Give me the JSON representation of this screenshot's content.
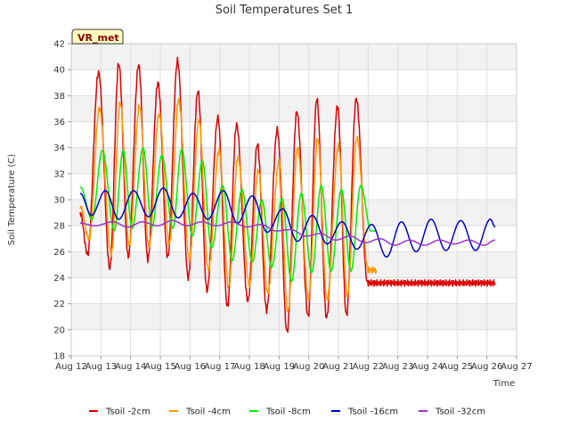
{
  "chart_data": {
    "type": "line",
    "title": "Soil Temperatures Set 1",
    "xlabel": "Time",
    "ylabel": "Soil Temperature (C)",
    "site_label": "VR_met",
    "xlim": [
      12,
      27
    ],
    "ylim": [
      18,
      42
    ],
    "x_ticks": [
      {
        "x": 12,
        "label": "Aug 12"
      },
      {
        "x": 13,
        "label": "Aug 13"
      },
      {
        "x": 14,
        "label": "Aug 14"
      },
      {
        "x": 15,
        "label": "Aug 15"
      },
      {
        "x": 16,
        "label": "Aug 16"
      },
      {
        "x": 17,
        "label": "Aug 17"
      },
      {
        "x": 18,
        "label": "Aug 18"
      },
      {
        "x": 19,
        "label": "Aug 19"
      },
      {
        "x": 20,
        "label": "Aug 20"
      },
      {
        "x": 21,
        "label": "Aug 21"
      },
      {
        "x": 22,
        "label": "Aug 22"
      },
      {
        "x": 23,
        "label": "Aug 23"
      },
      {
        "x": 24,
        "label": "Aug 24"
      },
      {
        "x": 25,
        "label": "Aug 25"
      },
      {
        "x": 26,
        "label": "Aug 26"
      },
      {
        "x": 27,
        "label": "Aug 27"
      }
    ],
    "y_ticks": [
      18,
      20,
      22,
      24,
      26,
      28,
      30,
      32,
      34,
      36,
      38,
      40,
      42
    ],
    "grid": true,
    "legend_position": "bottom",
    "series": [
      {
        "name": "Tsoil -2cm",
        "color": "#dd0000",
        "x": [
          12.3,
          12.55,
          12.92,
          13.3,
          13.6,
          13.92,
          14.27,
          14.58,
          14.92,
          15.25,
          15.58,
          15.94,
          16.27,
          16.57,
          16.94,
          17.26,
          17.57,
          17.95,
          18.27,
          18.58,
          18.94,
          19.27,
          19.6,
          19.98,
          20.27,
          20.6,
          20.97,
          21.27,
          21.6,
          21.98,
          22.27,
          22.6,
          22.98,
          23.28,
          23.61,
          23.96,
          24.28,
          24.62,
          24.97,
          25.28,
          25.62,
          25.96,
          26.28
        ],
        "y": [
          29.0,
          25.8,
          39.8,
          24.7,
          40.5,
          25.6,
          40.4,
          25.4,
          39.0,
          25.6,
          40.7,
          24.0,
          38.4,
          23.0,
          36.3,
          21.8,
          35.8,
          22.2,
          34.3,
          21.5,
          35.4,
          19.8,
          36.8,
          21.0,
          37.8,
          20.9,
          37.2,
          21.1,
          37.8,
          23.6,
          23.6,
          23.6,
          23.6,
          23.6,
          23.6,
          23.6,
          23.6,
          23.6,
          23.6,
          23.6,
          23.6,
          23.6,
          23.6
        ]
      },
      {
        "name": "Tsoil -4cm",
        "color": "#ff9900",
        "x": [
          12.3,
          12.6,
          12.95,
          13.35,
          13.65,
          13.95,
          14.3,
          14.62,
          14.96,
          15.3,
          15.62,
          15.98,
          16.3,
          16.62,
          16.98,
          17.3,
          17.62,
          18.0,
          18.3,
          18.62,
          19.0,
          19.3,
          19.62,
          20.0,
          20.3,
          20.62,
          21.0,
          21.3,
          21.62,
          22.0,
          22.28
        ],
        "y": [
          29.5,
          27.0,
          37.0,
          25.8,
          37.5,
          26.5,
          37.2,
          26.4,
          36.6,
          26.6,
          37.7,
          25.4,
          36.1,
          24.6,
          33.8,
          23.3,
          33.3,
          23.4,
          32.3,
          22.8,
          33.0,
          21.4,
          34.0,
          22.4,
          34.7,
          22.3,
          34.2,
          22.5,
          34.8,
          24.6,
          24.6
        ]
      },
      {
        "name": "Tsoil -8cm",
        "color": "#00ee00",
        "x": [
          12.3,
          12.7,
          13.05,
          13.45,
          13.75,
          14.05,
          14.42,
          14.72,
          15.05,
          15.42,
          15.72,
          16.08,
          16.42,
          16.72,
          17.1,
          17.42,
          17.75,
          18.1,
          18.42,
          18.75,
          19.1,
          19.42,
          19.75,
          20.1,
          20.42,
          20.75,
          21.1,
          21.42,
          21.75,
          22.1,
          22.28
        ],
        "y": [
          31.0,
          28.5,
          33.8,
          27.6,
          33.8,
          27.8,
          34.0,
          27.9,
          33.4,
          27.8,
          33.9,
          27.2,
          33.0,
          26.3,
          31.1,
          25.3,
          30.8,
          25.2,
          30.0,
          24.8,
          30.1,
          23.7,
          30.5,
          24.4,
          31.1,
          24.5,
          30.8,
          24.5,
          31.1,
          27.6,
          27.6
        ]
      },
      {
        "name": "Tsoil -16cm",
        "color": "#0000cc",
        "x": [
          12.3,
          12.68,
          13.15,
          13.6,
          14.1,
          14.6,
          15.1,
          15.6,
          16.1,
          16.6,
          17.12,
          17.6,
          18.1,
          18.6,
          19.12,
          19.62,
          20.12,
          20.62,
          21.12,
          21.62,
          22.12,
          22.62,
          23.12,
          23.62,
          24.12,
          24.62,
          25.12,
          25.62,
          26.12,
          26.28
        ],
        "y": [
          30.5,
          28.8,
          30.7,
          28.5,
          30.7,
          28.7,
          30.9,
          28.6,
          30.5,
          28.5,
          30.7,
          28.2,
          30.3,
          27.5,
          29.3,
          26.8,
          28.8,
          26.6,
          28.3,
          26.2,
          28.1,
          25.6,
          28.3,
          26.0,
          28.5,
          26.1,
          28.4,
          26.1,
          28.5,
          27.9
        ]
      },
      {
        "name": "Tsoil -32cm",
        "color": "#9933cc",
        "x": [
          12.3,
          12.8,
          13.4,
          13.9,
          14.4,
          14.9,
          15.4,
          15.9,
          16.4,
          16.9,
          17.4,
          17.9,
          18.4,
          18.9,
          19.4,
          19.9,
          20.4,
          20.9,
          21.4,
          21.9,
          22.4,
          22.9,
          23.4,
          23.9,
          24.4,
          24.9,
          25.4,
          25.9,
          26.28
        ],
        "y": [
          28.2,
          28.0,
          28.3,
          27.9,
          28.3,
          28.0,
          28.4,
          28.0,
          28.3,
          28.0,
          28.3,
          27.9,
          28.1,
          27.6,
          27.7,
          27.2,
          27.4,
          26.9,
          27.2,
          26.7,
          27.0,
          26.5,
          26.9,
          26.5,
          26.9,
          26.6,
          26.9,
          26.5,
          26.9
        ]
      }
    ]
  }
}
